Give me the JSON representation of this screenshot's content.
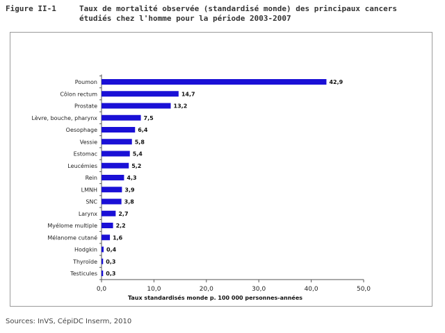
{
  "figure": {
    "label": "Figure II-1",
    "title": "Taux de mortalité observée (standardisé monde) des principaux cancers étudiés chez l'homme pour la période 2003-2007"
  },
  "sources": "Sources: InVS, CépiDC Inserm, 2010",
  "chart_data": {
    "type": "bar",
    "orientation": "horizontal",
    "title": "",
    "xlabel": "Taux standardisés monde p. 100 000 personnes-années",
    "ylabel": "",
    "xlim": [
      0,
      50
    ],
    "xticks": [
      "0,0",
      "10,0",
      "20,0",
      "30,0",
      "40,0",
      "50,0"
    ],
    "xtick_values": [
      0,
      10,
      20,
      30,
      40,
      50
    ],
    "grid": false,
    "bar_color": "#1a10d6",
    "categories": [
      "Poumon",
      "Côlon rectum",
      "Prostate",
      "Lèvre, bouche, pharynx",
      "Oesophage",
      "Vessie",
      "Estomac",
      "Leucémies",
      "Rein",
      "LMNH",
      "SNC",
      "Larynx",
      "Myélome multiple",
      "Mélanome cutané",
      "Hodgkin",
      "Thyroïde",
      "Testicules"
    ],
    "values": [
      42.9,
      14.7,
      13.2,
      7.5,
      6.4,
      5.8,
      5.4,
      5.2,
      4.3,
      3.9,
      3.8,
      2.7,
      2.2,
      1.6,
      0.4,
      0.3,
      0.3
    ],
    "value_labels": [
      "42,9",
      "14,7",
      "13,2",
      "7,5",
      "6,4",
      "5,8",
      "5,4",
      "5,2",
      "4,3",
      "3,9",
      "3,8",
      "2,7",
      "2,2",
      "1,6",
      "0,4",
      "0,3",
      "0,3"
    ]
  }
}
